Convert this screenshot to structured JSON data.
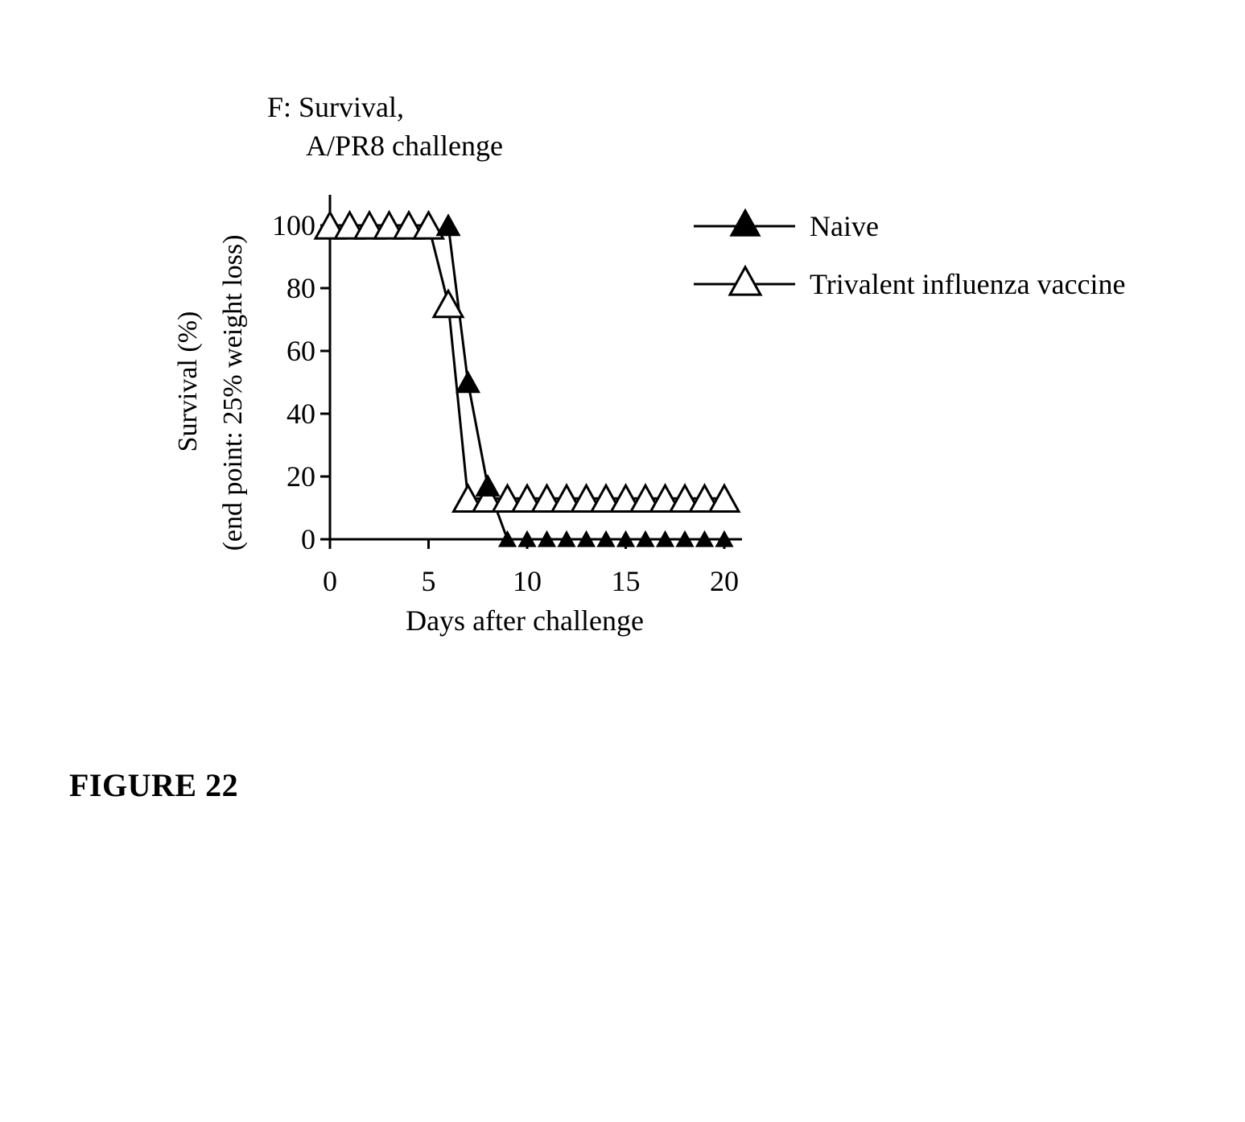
{
  "figure_caption": "FIGURE 22",
  "chart_data": {
    "type": "line",
    "title_line1": "F:  Survival,",
    "title_line2": "A/PR8 challenge",
    "xlabel": "Days after challenge",
    "ylabel_line1": "Survival (%)",
    "ylabel_line2": "(end point: 25% weight loss)",
    "xlim": [
      0,
      20
    ],
    "ylim": [
      0,
      100
    ],
    "xticks": [
      0,
      5,
      10,
      15,
      20
    ],
    "yticks": [
      0,
      20,
      40,
      60,
      80,
      100
    ],
    "grid": false,
    "legend_position": "right",
    "series": [
      {
        "name": "Naive",
        "marker": "filled-triangle",
        "color": "#000000",
        "x": [
          6,
          7,
          8,
          9,
          10,
          11,
          12,
          13,
          14,
          15,
          16,
          17,
          18,
          19,
          20
        ],
        "y": [
          100,
          50,
          17,
          0,
          0,
          0,
          0,
          0,
          0,
          0,
          0,
          0,
          0,
          0,
          0
        ]
      },
      {
        "name": "Trivalent influenza vaccine",
        "marker": "open-triangle",
        "color": "#000000",
        "x": [
          0,
          1,
          2,
          3,
          4,
          5,
          6,
          7,
          8,
          9,
          10,
          11,
          12,
          13,
          14,
          15,
          16,
          17,
          18,
          19,
          20
        ],
        "y": [
          100,
          100,
          100,
          100,
          100,
          100,
          75,
          13,
          13,
          13,
          13,
          13,
          13,
          13,
          13,
          13,
          13,
          13,
          13,
          13,
          13
        ]
      }
    ]
  }
}
